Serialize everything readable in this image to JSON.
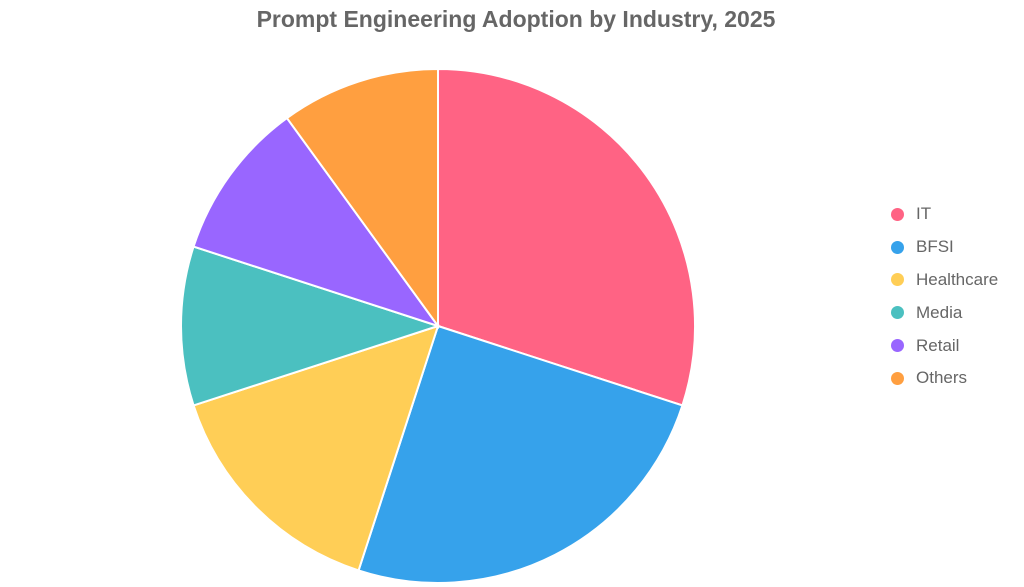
{
  "chart_data": {
    "type": "pie",
    "title": "Prompt Engineering Adoption by Industry, 2025",
    "categories": [
      "IT",
      "BFSI",
      "Healthcare",
      "Media",
      "Retail",
      "Others"
    ],
    "values": [
      30,
      25,
      15,
      10,
      10,
      10
    ],
    "colors": [
      "#FF6384",
      "#36A2EB",
      "#FFCE56",
      "#4BC0C0",
      "#9966FF",
      "#FF9F40"
    ],
    "legend_position": "right"
  }
}
